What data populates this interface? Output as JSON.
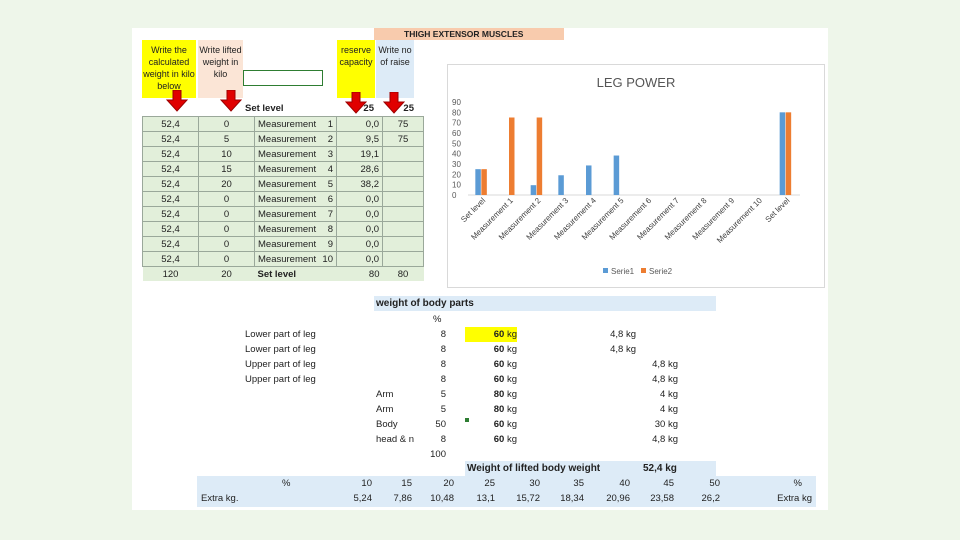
{
  "title": "THIGH EXTENSOR MUSCLES",
  "instructions": {
    "calc_weight": "Write the calculated weight in kilo below",
    "lifted_weight": "Write lifted weight in kilo",
    "reserve": "reserve capacity",
    "raise": "Write no of raise"
  },
  "set_level": {
    "label": "Set level",
    "reserve": "25",
    "raise": "25"
  },
  "rows": [
    {
      "calc": "52,4",
      "lifted": "0",
      "label": "Measurement",
      "num": "1",
      "reserve": "0,0",
      "raise": "75"
    },
    {
      "calc": "52,4",
      "lifted": "5",
      "label": "Measurement",
      "num": "2",
      "reserve": "9,5",
      "raise": "75"
    },
    {
      "calc": "52,4",
      "lifted": "10",
      "label": "Measurement",
      "num": "3",
      "reserve": "19,1",
      "raise": ""
    },
    {
      "calc": "52,4",
      "lifted": "15",
      "label": "Measurement",
      "num": "4",
      "reserve": "28,6",
      "raise": ""
    },
    {
      "calc": "52,4",
      "lifted": "20",
      "label": "Measurement",
      "num": "5",
      "reserve": "38,2",
      "raise": ""
    },
    {
      "calc": "52,4",
      "lifted": "0",
      "label": "Measurement",
      "num": "6",
      "reserve": "0,0",
      "raise": ""
    },
    {
      "calc": "52,4",
      "lifted": "0",
      "label": "Measurement",
      "num": "7",
      "reserve": "0,0",
      "raise": ""
    },
    {
      "calc": "52,4",
      "lifted": "0",
      "label": "Measurement",
      "num": "8",
      "reserve": "0,0",
      "raise": ""
    },
    {
      "calc": "52,4",
      "lifted": "0",
      "label": "Measurement",
      "num": "9",
      "reserve": "0,0",
      "raise": ""
    },
    {
      "calc": "52,4",
      "lifted": "0",
      "label": "Measurement",
      "num": "10",
      "reserve": "0,0",
      "raise": ""
    }
  ],
  "footer_row": {
    "calc": "120",
    "lifted": "20",
    "label": "Set level",
    "reserve": "80",
    "raise": "80"
  },
  "chart_data": {
    "type": "bar",
    "title": "LEG POWER",
    "categories": [
      "Set level",
      "Measurement 1",
      "Measurement 2",
      "Measurement 3",
      "Measurement 4",
      "Measurement 5",
      "Measurement 6",
      "Measurement 7",
      "Measurement 8",
      "Measurement 9",
      "Measurement 10",
      "Set level"
    ],
    "series": [
      {
        "name": "Serie1",
        "color": "#5b9bd5",
        "values": [
          25,
          0,
          9.5,
          19.1,
          28.6,
          38.2,
          0,
          0,
          0,
          0,
          0,
          80
        ]
      },
      {
        "name": "Serie2",
        "color": "#ed7d31",
        "values": [
          25,
          75,
          75,
          0,
          0,
          0,
          0,
          0,
          0,
          0,
          0,
          80
        ]
      }
    ],
    "yticks": [
      "0",
      "10",
      "20",
      "30",
      "40",
      "50",
      "60",
      "70",
      "80",
      "90"
    ],
    "ylim": [
      0,
      90
    ],
    "legend": "bottom"
  },
  "body_parts": {
    "header": "weight of body parts",
    "pct_header": "%",
    "rows": [
      {
        "name": "Lower part of leg",
        "pct": "8",
        "weight": "60",
        "unit": "kg",
        "part_kg": "4,8 kg"
      },
      {
        "name": "Lower part of leg",
        "pct": "8",
        "weight": "60",
        "unit": "kg",
        "part_kg": "4,8 kg"
      },
      {
        "name": "Upper part of leg",
        "pct": "8",
        "weight": "60",
        "unit": "kg",
        "part_kg": "4,8 kg"
      },
      {
        "name": "Upper part of leg",
        "pct": "8",
        "weight": "60",
        "unit": "kg",
        "part_kg": "4,8 kg"
      },
      {
        "name": "Arm",
        "pct": "5",
        "weight": "80",
        "unit": "kg",
        "part_kg": "4 kg"
      },
      {
        "name": "Arm",
        "pct": "5",
        "weight": "80",
        "unit": "kg",
        "part_kg": "4 kg"
      },
      {
        "name": "Body",
        "pct": "50",
        "weight": "60",
        "unit": "kg",
        "part_kg": "30 kg"
      },
      {
        "name": "head & n",
        "pct": "8",
        "weight": "60",
        "unit": "kg",
        "part_kg": "4,8 kg"
      }
    ],
    "total_pct": "100",
    "summary_label": "Weight of lifted body weight",
    "summary_value": "52,4 kg"
  },
  "extra": {
    "pct_label": "%",
    "pct_values": [
      "10",
      "15",
      "20",
      "25",
      "30",
      "35",
      "40",
      "45",
      "50"
    ],
    "pct_label_end": "%",
    "kg_label": "Extra kg.",
    "kg_values": [
      "5,24",
      "7,86",
      "10,48",
      "13,1",
      "15,72",
      "18,34",
      "20,96",
      "23,58",
      "26,2"
    ],
    "kg_label_end": "Extra kg"
  }
}
